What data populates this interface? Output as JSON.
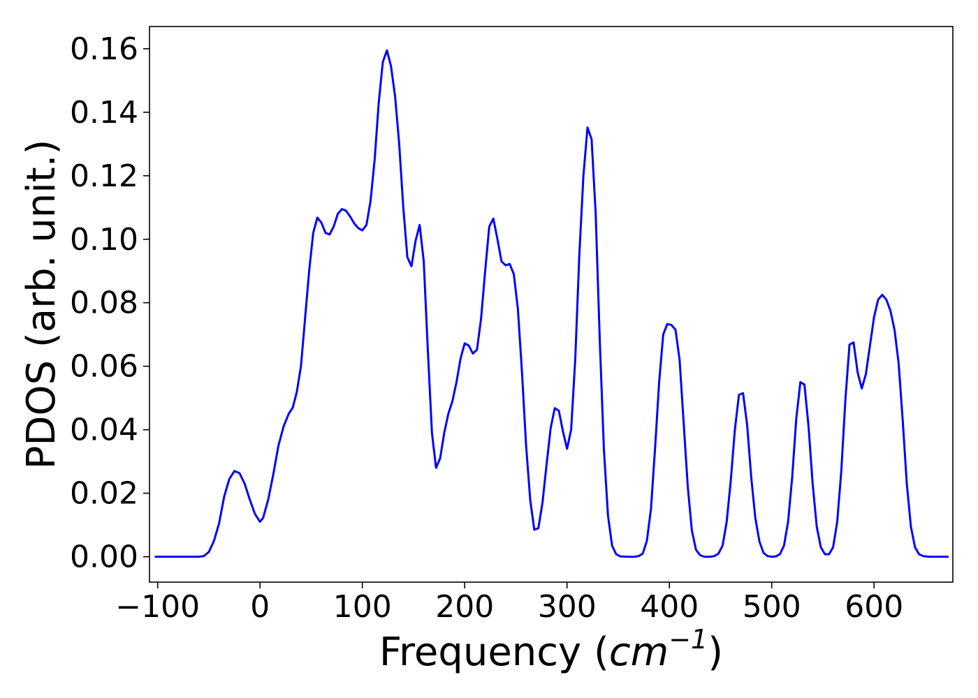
{
  "chart_data": {
    "type": "line",
    "title": "",
    "xlabel": "Frequency",
    "xlabel_parts": {
      "open": "(",
      "unit": "cm",
      "exponent": "−1",
      "close": ")"
    },
    "ylabel": "PDOS (arb. unit.)",
    "xlim": [
      -108,
      677
    ],
    "ylim": [
      -0.008,
      0.167
    ],
    "xticks": [
      -100,
      0,
      100,
      200,
      300,
      400,
      500,
      600
    ],
    "xtick_labels": [
      "−100",
      "0",
      "100",
      "200",
      "300",
      "400",
      "500",
      "600"
    ],
    "yticks": [
      0.0,
      0.02,
      0.04,
      0.06,
      0.08,
      0.1,
      0.12,
      0.14,
      0.16
    ],
    "ytick_labels": [
      "0.00",
      "0.02",
      "0.04",
      "0.06",
      "0.08",
      "0.10",
      "0.12",
      "0.14",
      "0.16"
    ],
    "grid": false,
    "legend": "none",
    "series": [
      {
        "color": "#0000ff",
        "points": [
          [
            -102,
            0.0
          ],
          [
            -60,
            0.0
          ],
          [
            -55,
            0.0002
          ],
          [
            -50,
            0.0015
          ],
          [
            -45,
            0.005
          ],
          [
            -40,
            0.0105
          ],
          [
            -35,
            0.019
          ],
          [
            -30,
            0.0245
          ],
          [
            -25,
            0.027
          ],
          [
            -20,
            0.0263
          ],
          [
            -15,
            0.023
          ],
          [
            -10,
            0.018
          ],
          [
            -5,
            0.0135
          ],
          [
            0,
            0.011
          ],
          [
            3,
            0.0122
          ],
          [
            8,
            0.018
          ],
          [
            13,
            0.026
          ],
          [
            18,
            0.035
          ],
          [
            23,
            0.041
          ],
          [
            28,
            0.045
          ],
          [
            32,
            0.047
          ],
          [
            36,
            0.052
          ],
          [
            40,
            0.06
          ],
          [
            44,
            0.075
          ],
          [
            48,
            0.09
          ],
          [
            52,
            0.102
          ],
          [
            56,
            0.1068
          ],
          [
            60,
            0.1052
          ],
          [
            64,
            0.102
          ],
          [
            68,
            0.1015
          ],
          [
            72,
            0.104
          ],
          [
            76,
            0.108
          ],
          [
            80,
            0.1095
          ],
          [
            84,
            0.109
          ],
          [
            88,
            0.1072
          ],
          [
            92,
            0.105
          ],
          [
            96,
            0.1035
          ],
          [
            100,
            0.1028
          ],
          [
            104,
            0.1045
          ],
          [
            108,
            0.112
          ],
          [
            112,
            0.125
          ],
          [
            116,
            0.143
          ],
          [
            120,
            0.1558
          ],
          [
            124,
            0.1595
          ],
          [
            128,
            0.1545
          ],
          [
            132,
            0.145
          ],
          [
            136,
            0.13
          ],
          [
            140,
            0.11
          ],
          [
            144,
            0.0943
          ],
          [
            148,
            0.0915
          ],
          [
            152,
            0.0995
          ],
          [
            156,
            0.1045
          ],
          [
            160,
            0.093
          ],
          [
            164,
            0.065
          ],
          [
            168,
            0.039
          ],
          [
            172,
            0.028
          ],
          [
            176,
            0.031
          ],
          [
            180,
            0.039
          ],
          [
            184,
            0.045
          ],
          [
            188,
            0.049
          ],
          [
            192,
            0.055
          ],
          [
            196,
            0.0625
          ],
          [
            200,
            0.0672
          ],
          [
            204,
            0.0665
          ],
          [
            208,
            0.064
          ],
          [
            212,
            0.0652
          ],
          [
            216,
            0.075
          ],
          [
            220,
            0.09
          ],
          [
            224,
            0.104
          ],
          [
            228,
            0.1065
          ],
          [
            232,
            0.1
          ],
          [
            236,
            0.093
          ],
          [
            240,
            0.0918
          ],
          [
            244,
            0.0922
          ],
          [
            248,
            0.089
          ],
          [
            252,
            0.078
          ],
          [
            256,
            0.058
          ],
          [
            260,
            0.035
          ],
          [
            264,
            0.018
          ],
          [
            268,
            0.0085
          ],
          [
            272,
            0.009
          ],
          [
            276,
            0.017
          ],
          [
            280,
            0.029
          ],
          [
            284,
            0.0405
          ],
          [
            288,
            0.0468
          ],
          [
            292,
            0.046
          ],
          [
            296,
            0.0395
          ],
          [
            300,
            0.034
          ],
          [
            304,
            0.04
          ],
          [
            308,
            0.062
          ],
          [
            312,
            0.095
          ],
          [
            316,
            0.12
          ],
          [
            320,
            0.1352
          ],
          [
            324,
            0.1315
          ],
          [
            328,
            0.108
          ],
          [
            332,
            0.068
          ],
          [
            336,
            0.034
          ],
          [
            340,
            0.013
          ],
          [
            344,
            0.0035
          ],
          [
            348,
            0.0008
          ],
          [
            352,
            0.0001
          ],
          [
            360,
            0.0
          ],
          [
            366,
            0.0
          ],
          [
            370,
            0.0002
          ],
          [
            374,
            0.001
          ],
          [
            378,
            0.005
          ],
          [
            382,
            0.015
          ],
          [
            386,
            0.034
          ],
          [
            390,
            0.055
          ],
          [
            394,
            0.07
          ],
          [
            398,
            0.0733
          ],
          [
            402,
            0.073
          ],
          [
            406,
            0.0715
          ],
          [
            410,
            0.062
          ],
          [
            414,
            0.042
          ],
          [
            418,
            0.022
          ],
          [
            422,
            0.0082
          ],
          [
            426,
            0.0022
          ],
          [
            430,
            0.0005
          ],
          [
            434,
            0.0
          ],
          [
            440,
            0.0
          ],
          [
            444,
            0.0002
          ],
          [
            448,
            0.001
          ],
          [
            452,
            0.0035
          ],
          [
            456,
            0.011
          ],
          [
            460,
            0.024
          ],
          [
            464,
            0.04
          ],
          [
            468,
            0.051
          ],
          [
            472,
            0.0515
          ],
          [
            476,
            0.0415
          ],
          [
            480,
            0.025
          ],
          [
            484,
            0.0122
          ],
          [
            488,
            0.0048
          ],
          [
            492,
            0.0012
          ],
          [
            496,
            0.0002
          ],
          [
            500,
            0.0
          ],
          [
            504,
            0.0001
          ],
          [
            508,
            0.0008
          ],
          [
            512,
            0.0035
          ],
          [
            516,
            0.011
          ],
          [
            520,
            0.025
          ],
          [
            524,
            0.0435
          ],
          [
            528,
            0.055
          ],
          [
            532,
            0.0542
          ],
          [
            536,
            0.041
          ],
          [
            540,
            0.023
          ],
          [
            544,
            0.0095
          ],
          [
            548,
            0.003
          ],
          [
            552,
            0.0008
          ],
          [
            556,
            0.0008
          ],
          [
            560,
            0.003
          ],
          [
            564,
            0.011
          ],
          [
            568,
            0.027
          ],
          [
            572,
            0.0495
          ],
          [
            576,
            0.0668
          ],
          [
            580,
            0.0675
          ],
          [
            584,
            0.058
          ],
          [
            588,
            0.053
          ],
          [
            592,
            0.0575
          ],
          [
            596,
            0.0665
          ],
          [
            600,
            0.0755
          ],
          [
            604,
            0.081
          ],
          [
            608,
            0.0825
          ],
          [
            612,
            0.081
          ],
          [
            616,
            0.0775
          ],
          [
            620,
            0.0715
          ],
          [
            624,
            0.061
          ],
          [
            628,
            0.043
          ],
          [
            632,
            0.023
          ],
          [
            636,
            0.0095
          ],
          [
            640,
            0.003
          ],
          [
            644,
            0.0008
          ],
          [
            648,
            0.0002
          ],
          [
            654,
            0.0
          ],
          [
            672,
            0.0
          ]
        ]
      }
    ]
  }
}
